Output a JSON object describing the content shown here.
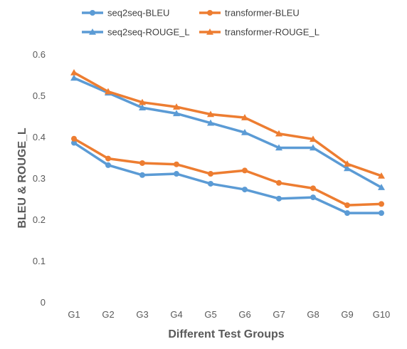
{
  "chart_data": {
    "type": "line",
    "title": "",
    "xlabel": "Different Test Groups",
    "ylabel": "BLEU & ROUGE_L",
    "ylim": [
      0,
      0.6
    ],
    "yticks": [
      "0",
      "0.1",
      "0.2",
      "0.3",
      "0.4",
      "0.5",
      "0.6"
    ],
    "grid": false,
    "legend_position": "top",
    "categories": [
      "G1",
      "G2",
      "G3",
      "G4",
      "G5",
      "G6",
      "G7",
      "G8",
      "G9",
      "G10"
    ],
    "series": [
      {
        "name": "seq2seq-BLEU",
        "color": "#5B9BD5",
        "marker": "circle",
        "values": [
          0.387,
          0.333,
          0.309,
          0.312,
          0.288,
          0.274,
          0.252,
          0.255,
          0.217,
          0.217
        ]
      },
      {
        "name": "transformer-BLEU",
        "color": "#ED7D31",
        "marker": "circle",
        "values": [
          0.397,
          0.349,
          0.338,
          0.335,
          0.312,
          0.32,
          0.29,
          0.277,
          0.236,
          0.239
        ]
      },
      {
        "name": "seq2seq-ROUGE_L",
        "color": "#5B9BD5",
        "marker": "triangle",
        "values": [
          0.544,
          0.508,
          0.472,
          0.458,
          0.435,
          0.412,
          0.375,
          0.375,
          0.325,
          0.279
        ]
      },
      {
        "name": "transformer-ROUGE_L",
        "color": "#ED7D31",
        "marker": "triangle",
        "values": [
          0.557,
          0.511,
          0.485,
          0.474,
          0.456,
          0.448,
          0.409,
          0.396,
          0.336,
          0.307
        ]
      }
    ]
  }
}
